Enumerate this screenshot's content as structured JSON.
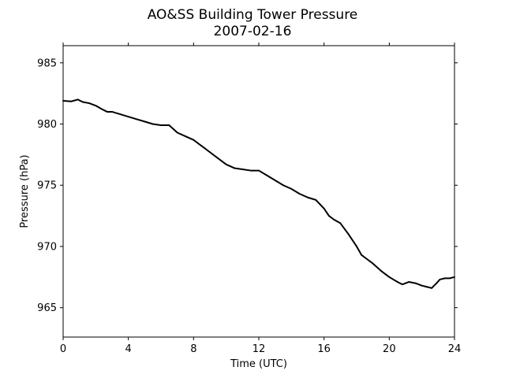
{
  "chart_data": {
    "type": "line",
    "title": "AO&SS Building Tower Pressure",
    "subtitle": "2007-02-16",
    "xlabel": "Time (UTC)",
    "ylabel": "Pressure (hPa)",
    "xlim": [
      0,
      24
    ],
    "ylim": [
      962.6,
      986.4
    ],
    "xticks": [
      0,
      4,
      8,
      12,
      16,
      20,
      24
    ],
    "yticks": [
      965,
      970,
      975,
      980,
      985
    ],
    "grid": false,
    "series": [
      {
        "color": "#000000",
        "x": [
          0,
          0.5,
          0.9,
          1.2,
          1.6,
          2.0,
          2.4,
          2.7,
          3.0,
          3.5,
          4.0,
          4.5,
          5.0,
          5.5,
          6.0,
          6.5,
          7.0,
          7.5,
          8.0,
          8.5,
          9.0,
          9.5,
          10.0,
          10.5,
          11.0,
          11.5,
          12.0,
          12.5,
          13.0,
          13.5,
          14.0,
          14.5,
          15.0,
          15.5,
          16.0,
          16.3,
          16.6,
          17.0,
          17.5,
          18.0,
          18.3,
          18.6,
          19.0,
          19.5,
          20.0,
          20.5,
          20.8,
          21.2,
          21.6,
          22.0,
          22.3,
          22.6,
          22.9,
          23.1,
          23.4,
          23.7,
          24.0
        ],
        "y": [
          981.9,
          981.85,
          982.0,
          981.8,
          981.7,
          981.5,
          981.2,
          981.0,
          981.0,
          980.8,
          980.6,
          980.4,
          980.2,
          980.0,
          979.9,
          979.9,
          979.3,
          979.0,
          978.7,
          978.2,
          977.7,
          977.2,
          976.7,
          976.4,
          976.3,
          976.2,
          976.2,
          975.8,
          975.4,
          975.0,
          974.7,
          974.3,
          974.0,
          973.8,
          973.1,
          972.5,
          972.2,
          971.9,
          971.0,
          970.0,
          969.3,
          969.0,
          968.6,
          968.0,
          967.5,
          967.1,
          966.9,
          967.1,
          967.0,
          966.8,
          966.7,
          966.6,
          967.0,
          967.3,
          967.4,
          967.4,
          967.5
        ]
      }
    ]
  }
}
